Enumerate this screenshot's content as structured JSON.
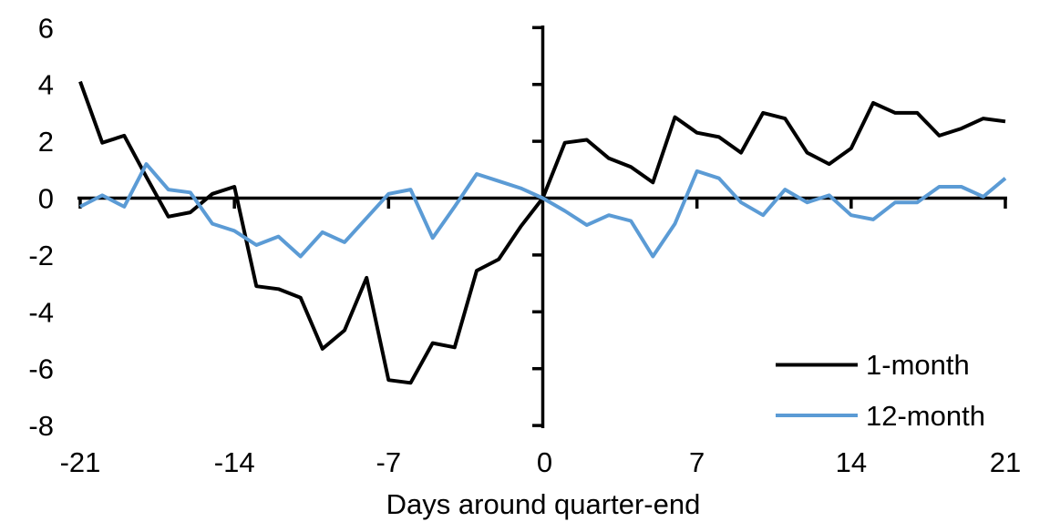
{
  "figure": {
    "background_color": "#ffffff",
    "axis_color": "#000000"
  },
  "chart_data": {
    "type": "line",
    "title": "",
    "xlabel": "Days around quarter-end",
    "ylabel": "",
    "xlim": [
      -21,
      21
    ],
    "ylim": [
      -8,
      6
    ],
    "xticks": [
      -21,
      -14,
      -7,
      0,
      7,
      14,
      21
    ],
    "yticks": [
      6,
      4,
      2,
      0,
      -2,
      -4,
      -6,
      -8
    ],
    "grid": false,
    "legend_position": "lower-right",
    "x": [
      -21,
      -20,
      -19,
      -18,
      -17,
      -16,
      -15,
      -14,
      -13,
      -12,
      -11,
      -10,
      -9,
      -8,
      -7,
      -6,
      -5,
      -4,
      -3,
      -2,
      -1,
      0,
      1,
      2,
      3,
      4,
      5,
      6,
      7,
      8,
      9,
      10,
      11,
      12,
      13,
      14,
      15,
      16,
      17,
      18,
      19,
      20,
      21
    ],
    "series": [
      {
        "name": "1-month",
        "color": "#000000",
        "values": [
          4.1,
          1.95,
          2.2,
          0.75,
          -0.65,
          -0.5,
          0.15,
          0.4,
          -3.1,
          -3.2,
          -3.5,
          -5.3,
          -4.65,
          -2.8,
          -6.4,
          -6.5,
          -5.1,
          -5.25,
          -2.55,
          -2.15,
          -1.0,
          0,
          1.95,
          2.05,
          1.4,
          1.1,
          0.55,
          2.85,
          2.3,
          2.15,
          1.6,
          3.0,
          2.8,
          1.6,
          1.2,
          1.75,
          3.35,
          3.0,
          3.0,
          2.2,
          2.45,
          2.8,
          2.7
        ]
      },
      {
        "name": "12-month",
        "color": "#5B9BD5",
        "values": [
          -0.3,
          0.1,
          -0.3,
          1.2,
          0.3,
          0.2,
          -0.9,
          -1.15,
          -1.65,
          -1.35,
          -2.05,
          -1.2,
          -1.55,
          -0.7,
          0.15,
          0.3,
          -1.4,
          -0.3,
          0.85,
          0.6,
          0.35,
          0,
          -0.45,
          -0.95,
          -0.6,
          -0.8,
          -2.05,
          -0.9,
          0.95,
          0.7,
          -0.15,
          -0.6,
          0.3,
          -0.15,
          0.1,
          -0.6,
          -0.75,
          -0.15,
          -0.15,
          0.4,
          0.4,
          0.05,
          0.7
        ]
      }
    ]
  }
}
